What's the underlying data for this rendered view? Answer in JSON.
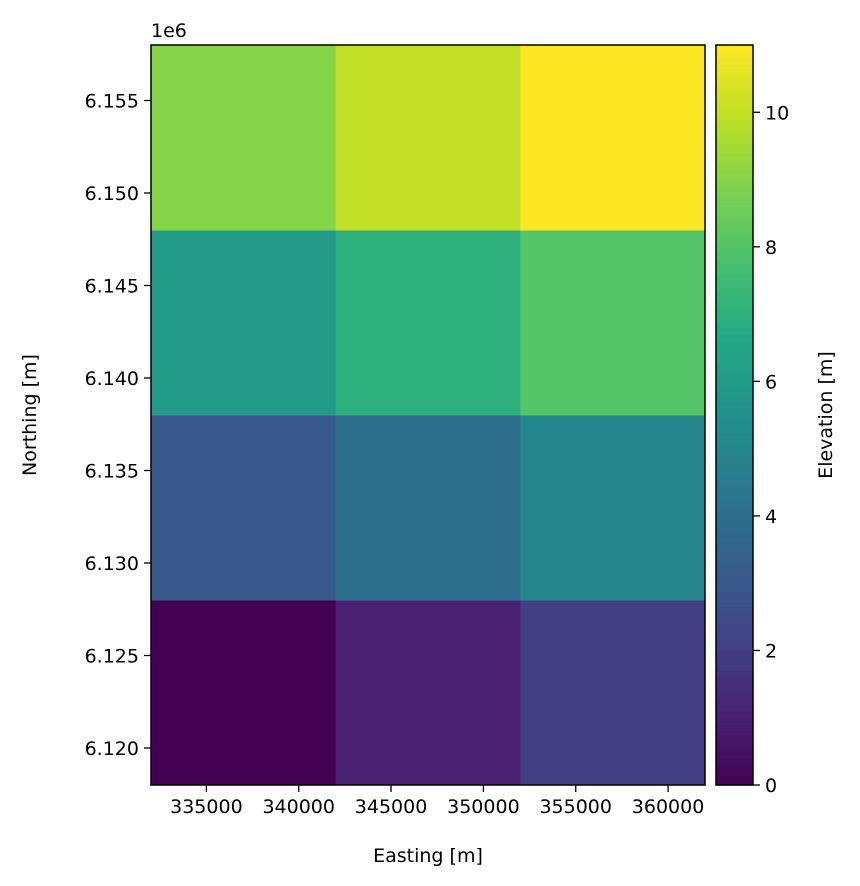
{
  "chart_data": {
    "type": "heatmap",
    "x_centers": [
      337000,
      347000,
      357000
    ],
    "y_centers": [
      6123000,
      6133000,
      6143000,
      6153000
    ],
    "values": [
      [
        0,
        1,
        2
      ],
      [
        3,
        4,
        5
      ],
      [
        6,
        7,
        8
      ],
      [
        9,
        10,
        11
      ]
    ],
    "xlim": [
      332000,
      362000
    ],
    "ylim": [
      6118000,
      6158000
    ],
    "xlabel": "Easting [m]",
    "ylabel": "Northing [m]",
    "y_offset_label": "1e6",
    "x_ticks": [
      335000,
      340000,
      345000,
      350000,
      355000,
      360000
    ],
    "x_tick_labels": [
      "335000",
      "340000",
      "345000",
      "350000",
      "355000",
      "360000"
    ],
    "y_ticks": [
      6120000,
      6125000,
      6130000,
      6135000,
      6140000,
      6145000,
      6150000,
      6155000
    ],
    "y_tick_labels": [
      "6.120",
      "6.125",
      "6.130",
      "6.135",
      "6.140",
      "6.145",
      "6.150",
      "6.155"
    ],
    "colorbar": {
      "label": "Elevation [m]",
      "colormap": "viridis",
      "range": [
        0,
        11
      ],
      "ticks": [
        0,
        2,
        4,
        6,
        8,
        10
      ],
      "tick_labels": [
        "0",
        "2",
        "4",
        "6",
        "8",
        "10"
      ]
    }
  }
}
